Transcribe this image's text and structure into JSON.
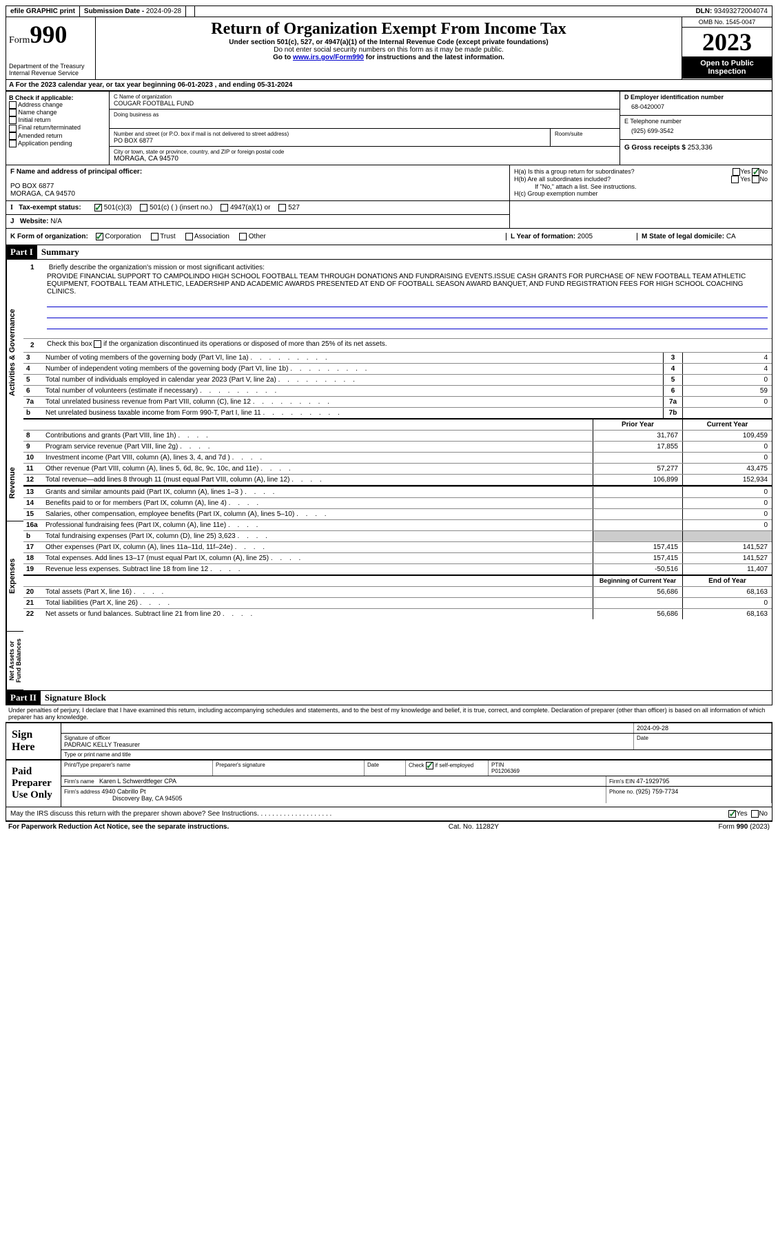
{
  "topbar": {
    "efile": "efile GRAPHIC print",
    "subdate_label": "Submission Date - ",
    "subdate": "2024-09-28",
    "dln_label": "DLN: ",
    "dln": "93493272004074"
  },
  "header": {
    "form_word": "Form",
    "form_num": "990",
    "dept": "Department of the Treasury\nInternal Revenue Service",
    "title": "Return of Organization Exempt From Income Tax",
    "sub1": "Under section 501(c), 527, or 4947(a)(1) of the Internal Revenue Code (except private foundations)",
    "sub2": "Do not enter social security numbers on this form as it may be made public.",
    "sub3_pre": "Go to ",
    "sub3_link": "www.irs.gov/Form990",
    "sub3_post": " for instructions and the latest information.",
    "omb": "OMB No. 1545-0047",
    "year": "2023",
    "inspection": "Open to Public Inspection"
  },
  "lineA": {
    "text_pre": "A For the 2023 calendar year, or tax year beginning ",
    "begin": "06-01-2023",
    "mid": " , and ending ",
    "end": "05-31-2024"
  },
  "boxB": {
    "hdr": "B Check if applicable:",
    "opts": [
      "Address change",
      "Name change",
      "Initial return",
      "Final return/terminated",
      "Amended return",
      "Application pending"
    ]
  },
  "boxC": {
    "name_label": "C Name of organization",
    "name": "COUGAR FOOTBALL FUND",
    "dba_label": "Doing business as",
    "street_label": "Number and street (or P.O. box if mail is not delivered to street address)",
    "street": "PO BOX 6877",
    "room_label": "Room/suite",
    "city_label": "City or town, state or province, country, and ZIP or foreign postal code",
    "city": "MORAGA, CA  94570"
  },
  "boxD": {
    "label": "D Employer identification number",
    "val": "68-0420007"
  },
  "boxE": {
    "label": "E Telephone number",
    "val": "(925) 699-3542"
  },
  "boxG": {
    "label": "G Gross receipts $ ",
    "val": "253,336"
  },
  "boxF": {
    "label": "F  Name and address of principal officer:",
    "addr1": "PO BOX 6877",
    "addr2": "MORAGA, CA  94570"
  },
  "boxH": {
    "a": "H(a)  Is this a group return for subordinates?",
    "b": "H(b)  Are all subordinates included?",
    "b_note": "If \"No,\" attach a list. See instructions.",
    "c": "H(c)  Group exemption number "
  },
  "boxI": {
    "label": "Tax-exempt status:",
    "o1": "501(c)(3)",
    "o2": "501(c) (  ) (insert no.)",
    "o3": "4947(a)(1) or",
    "o4": "527"
  },
  "boxJ": {
    "label": "Website: ",
    "val": "N/A"
  },
  "boxK": {
    "label": "K Form of organization:",
    "opts": [
      "Corporation",
      "Trust",
      "Association",
      "Other"
    ]
  },
  "boxL": {
    "label": "L Year of formation: ",
    "val": "2005"
  },
  "boxM": {
    "label": "M State of legal domicile: ",
    "val": "CA"
  },
  "part1": {
    "hdr": "Part I",
    "title": "Summary",
    "vlabel_ag": "Activities & Governance",
    "vlabel_rev": "Revenue",
    "vlabel_exp": "Expenses",
    "vlabel_na": "Net Assets or Fund Balances",
    "l1_label": "Briefly describe the organization's mission or most significant activities:",
    "l1_val": "PROVIDE FINANCIAL SUPPORT TO CAMPOLINDO HIGH SCHOOL FOOTBALL TEAM THROUGH DONATIONS AND FUNDRAISING EVENTS.ISSUE CASH GRANTS FOR PURCHASE OF NEW FOOTBALL TEAM ATHLETIC EQUIPMENT, FOOTBALL TEAM ATHLETIC, LEADERSHIP AND ACADEMIC AWARDS PRESENTED AT END OF FOOTBALL SEASON AWARD BANQUET, AND FUND REGISTRATION FEES FOR HIGH SCHOOL COACHING CLINICS.",
    "l2": "Check this box       if the organization discontinued its operations or disposed of more than 25% of its net assets.",
    "rows_ag": [
      {
        "n": "3",
        "d": "Number of voting members of the governing body (Part VI, line 1a)",
        "b": "3",
        "v": "4"
      },
      {
        "n": "4",
        "d": "Number of independent voting members of the governing body (Part VI, line 1b)",
        "b": "4",
        "v": "4"
      },
      {
        "n": "5",
        "d": "Total number of individuals employed in calendar year 2023 (Part V, line 2a)",
        "b": "5",
        "v": "0"
      },
      {
        "n": "6",
        "d": "Total number of volunteers (estimate if necessary)",
        "b": "6",
        "v": "59"
      },
      {
        "n": "7a",
        "d": "Total unrelated business revenue from Part VIII, column (C), line 12",
        "b": "7a",
        "v": "0"
      },
      {
        "n": "  b",
        "d": "Net unrelated business taxable income from Form 990-T, Part I, line 11",
        "b": "7b",
        "v": ""
      }
    ],
    "col_prior": "Prior Year",
    "col_current": "Current Year",
    "rows_rev": [
      {
        "n": "8",
        "d": "Contributions and grants (Part VIII, line 1h)",
        "p": "31,767",
        "c": "109,459"
      },
      {
        "n": "9",
        "d": "Program service revenue (Part VIII, line 2g)",
        "p": "17,855",
        "c": "0"
      },
      {
        "n": "10",
        "d": "Investment income (Part VIII, column (A), lines 3, 4, and 7d )",
        "p": "",
        "c": "0"
      },
      {
        "n": "11",
        "d": "Other revenue (Part VIII, column (A), lines 5, 6d, 8c, 9c, 10c, and 11e)",
        "p": "57,277",
        "c": "43,475"
      },
      {
        "n": "12",
        "d": "Total revenue—add lines 8 through 11 (must equal Part VIII, column (A), line 12)",
        "p": "106,899",
        "c": "152,934"
      }
    ],
    "rows_exp": [
      {
        "n": "13",
        "d": "Grants and similar amounts paid (Part IX, column (A), lines 1–3 )",
        "p": "",
        "c": "0"
      },
      {
        "n": "14",
        "d": "Benefits paid to or for members (Part IX, column (A), line 4)",
        "p": "",
        "c": "0"
      },
      {
        "n": "15",
        "d": "Salaries, other compensation, employee benefits (Part IX, column (A), lines 5–10)",
        "p": "",
        "c": "0"
      },
      {
        "n": "16a",
        "d": "Professional fundraising fees (Part IX, column (A), line 11e)",
        "p": "",
        "c": "0"
      },
      {
        "n": "  b",
        "d": "Total fundraising expenses (Part IX, column (D), line 25) 3,623",
        "p": "SHADE",
        "c": "SHADE"
      },
      {
        "n": "17",
        "d": "Other expenses (Part IX, column (A), lines 11a–11d, 11f–24e)",
        "p": "157,415",
        "c": "141,527"
      },
      {
        "n": "18",
        "d": "Total expenses. Add lines 13–17 (must equal Part IX, column (A), line 25)",
        "p": "157,415",
        "c": "141,527"
      },
      {
        "n": "19",
        "d": "Revenue less expenses. Subtract line 18 from line 12",
        "p": "-50,516",
        "c": "11,407"
      }
    ],
    "col_begin": "Beginning of Current Year",
    "col_end": "End of Year",
    "rows_na": [
      {
        "n": "20",
        "d": "Total assets (Part X, line 16)",
        "p": "56,686",
        "c": "68,163"
      },
      {
        "n": "21",
        "d": "Total liabilities (Part X, line 26)",
        "p": "",
        "c": "0"
      },
      {
        "n": "22",
        "d": "Net assets or fund balances. Subtract line 21 from line 20",
        "p": "56,686",
        "c": "68,163"
      }
    ]
  },
  "part2": {
    "hdr": "Part II",
    "title": "Signature Block",
    "decl": "Under penalties of perjury, I declare that I have examined this return, including accompanying schedules and statements, and to the best of my knowledge and belief, it is true, correct, and complete. Declaration of preparer (other than officer) is based on all information of which preparer has any knowledge."
  },
  "sign": {
    "label": "Sign Here",
    "date": "2024-09-28",
    "sig_label": "Signature of officer",
    "date_label": "Date",
    "name": "PADRAIC KELLY  Treasurer",
    "name_label": "Type or print name and title"
  },
  "paid": {
    "label": "Paid Preparer Use Only",
    "h1": "Print/Type preparer's name",
    "h2": "Preparer's signature",
    "h3": "Date",
    "h4_pre": "Check        if self-employed",
    "h5": "PTIN",
    "ptin": "P01206369",
    "firm_label": "Firm's name   ",
    "firm": "Karen L Schwerdtfeger CPA",
    "ein_label": "Firm's EIN  ",
    "ein": "47-1929795",
    "addr_label": "Firm's address ",
    "addr1": "4940 Cabrillo Pt",
    "addr2": "Discovery Bay, CA  94505",
    "phone_label": "Phone no. ",
    "phone": "(925) 759-7734"
  },
  "discuss": "May the IRS discuss this return with the preparer shown above? See Instructions.",
  "footer": {
    "left": "For Paperwork Reduction Act Notice, see the separate instructions.",
    "mid": "Cat. No. 11282Y",
    "right_pre": "Form ",
    "right_form": "990",
    "right_post": " (2023)"
  },
  "yes": "Yes",
  "no": "No"
}
